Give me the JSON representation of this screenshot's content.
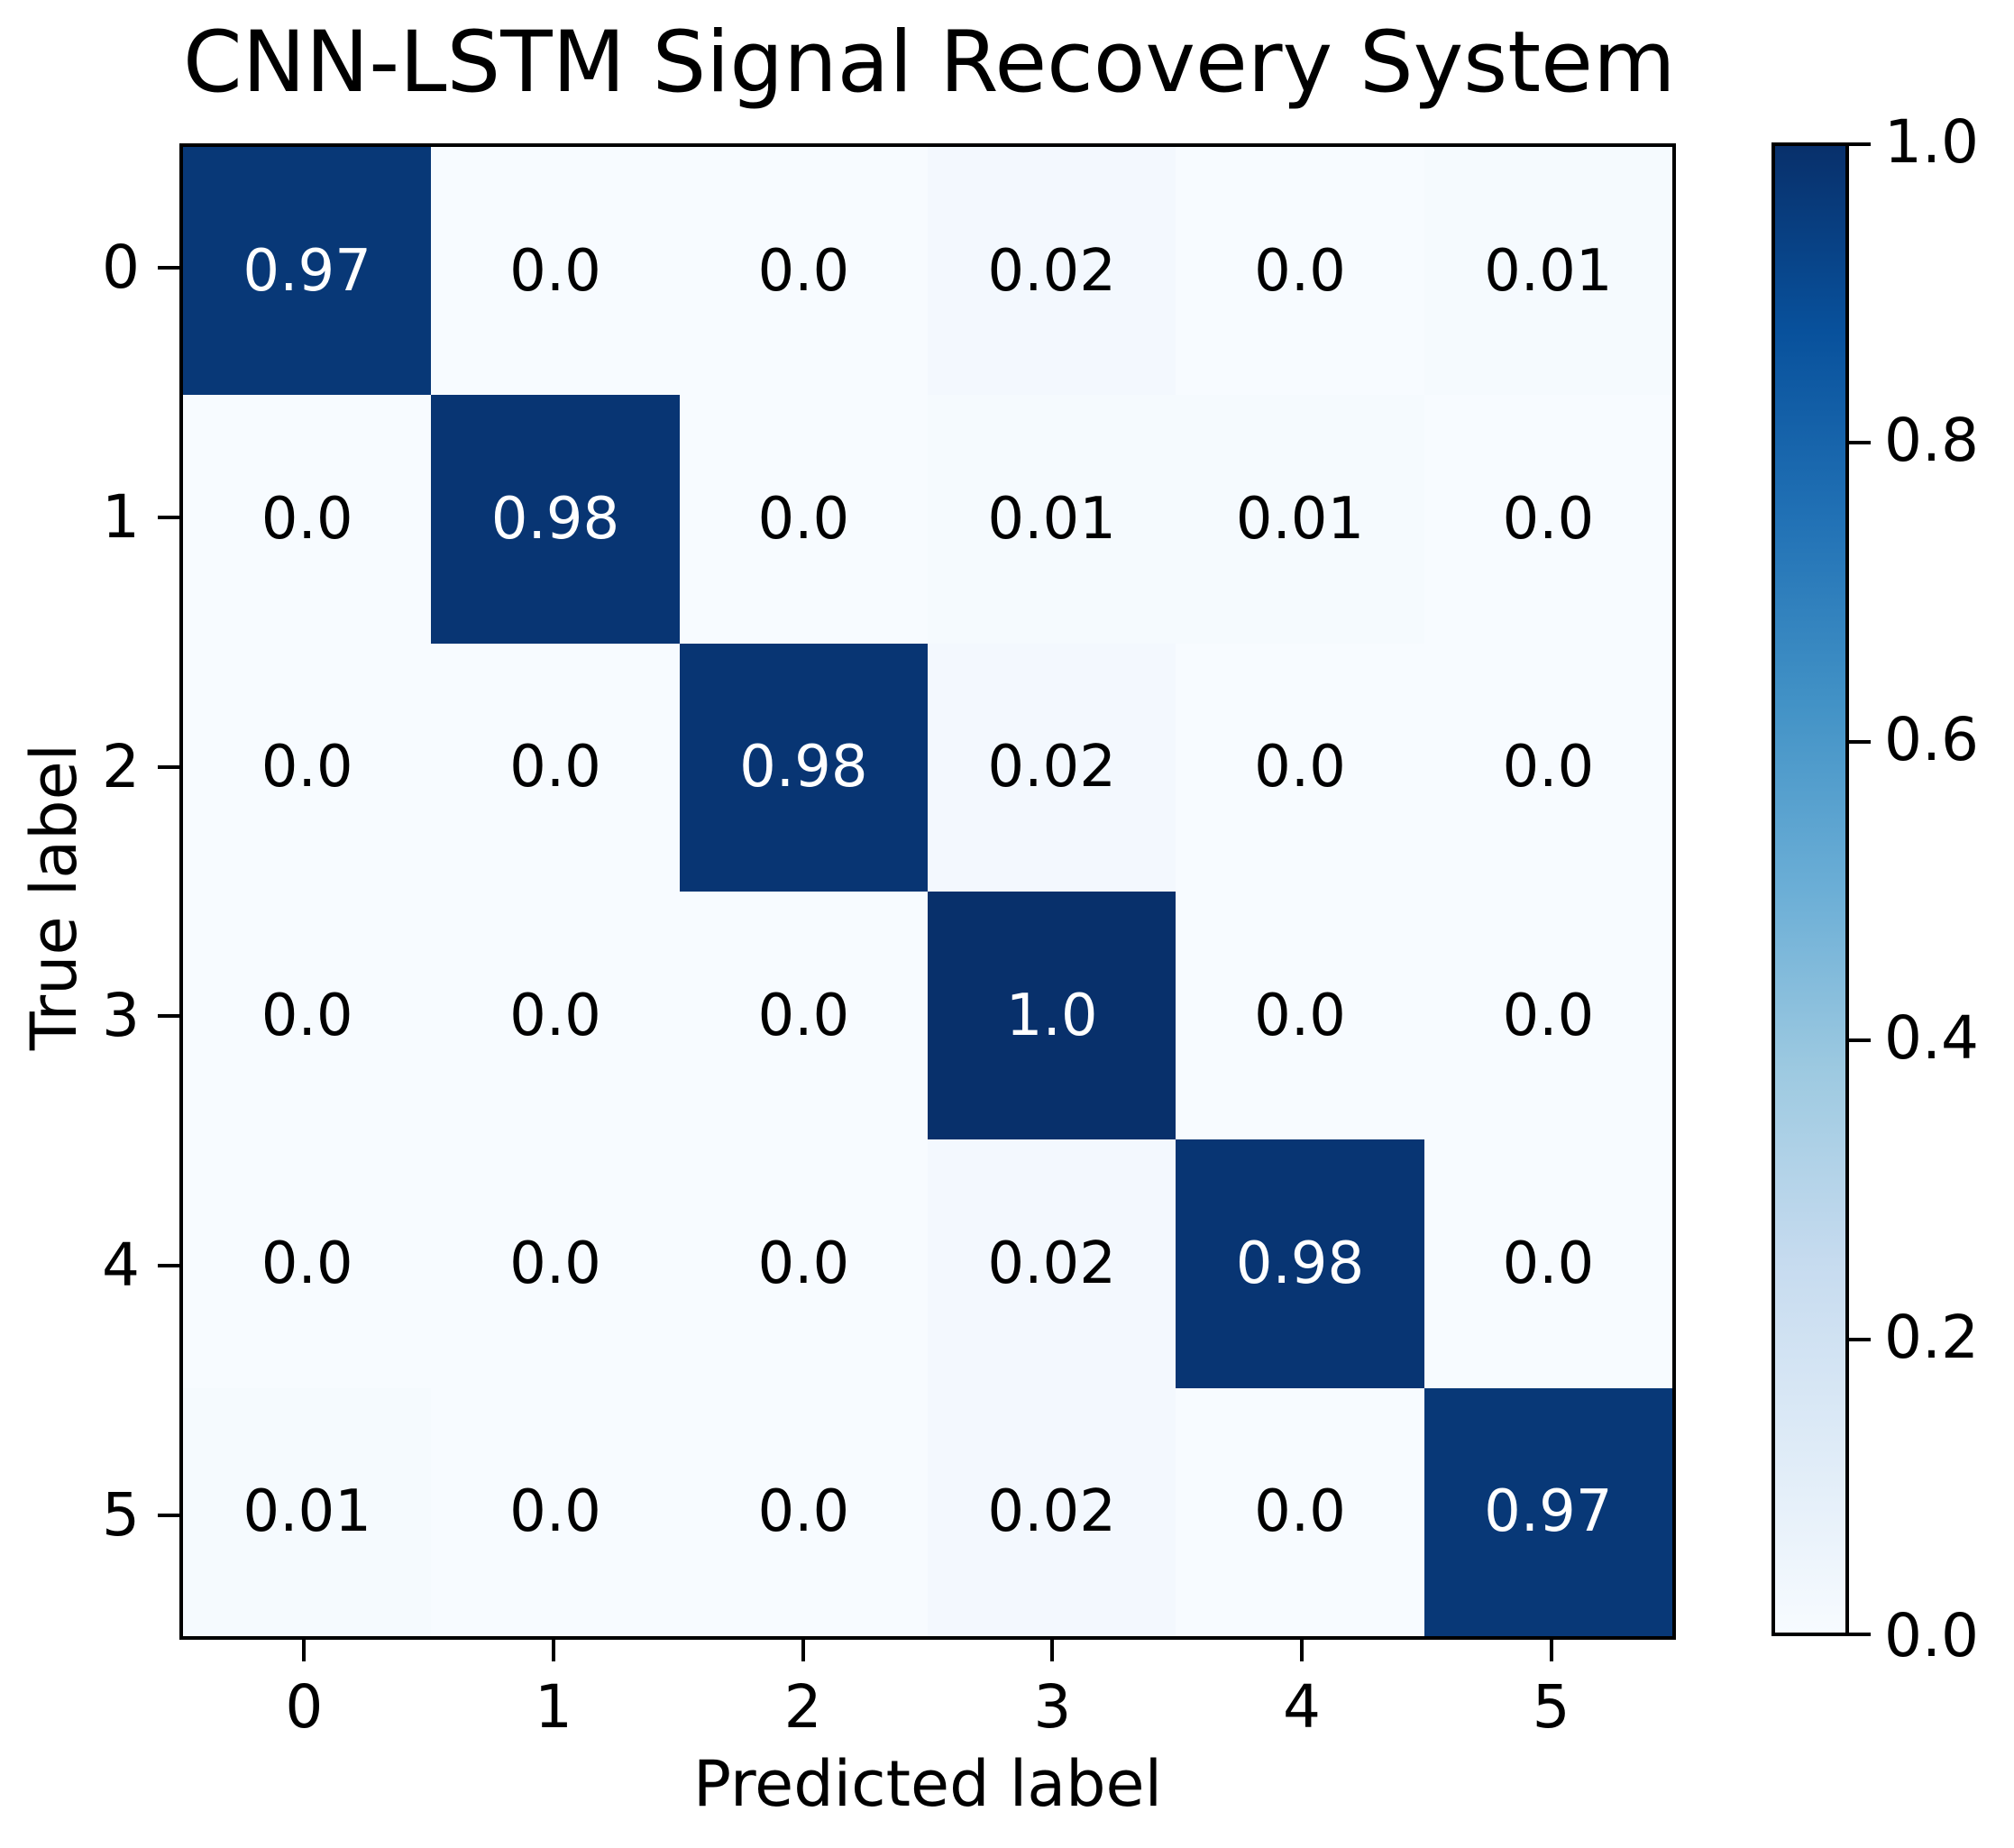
{
  "title": "CNN-LSTM Signal Recovery System",
  "chart_data": {
    "type": "heatmap",
    "title": "CNN-LSTM Signal Recovery System",
    "xlabel": "Predicted label",
    "ylabel": "True label",
    "x_tick_labels": [
      "0",
      "1",
      "2",
      "3",
      "4",
      "5"
    ],
    "y_tick_labels": [
      "0",
      "1",
      "2",
      "3",
      "4",
      "5"
    ],
    "values": [
      [
        0.97,
        0.0,
        0.0,
        0.02,
        0.0,
        0.01
      ],
      [
        0.0,
        0.98,
        0.0,
        0.01,
        0.01,
        0.0
      ],
      [
        0.0,
        0.0,
        0.98,
        0.02,
        0.0,
        0.0
      ],
      [
        0.0,
        0.0,
        0.0,
        1.0,
        0.0,
        0.0
      ],
      [
        0.0,
        0.0,
        0.0,
        0.02,
        0.98,
        0.0
      ],
      [
        0.01,
        0.0,
        0.0,
        0.02,
        0.0,
        0.97
      ]
    ],
    "cell_labels": [
      [
        "0.97",
        "0.0",
        "0.0",
        "0.02",
        "0.0",
        "0.01"
      ],
      [
        "0.0",
        "0.98",
        "0.0",
        "0.01",
        "0.01",
        "0.0"
      ],
      [
        "0.0",
        "0.0",
        "0.98",
        "0.02",
        "0.0",
        "0.0"
      ],
      [
        "0.0",
        "0.0",
        "0.0",
        "1.0",
        "0.0",
        "0.0"
      ],
      [
        "0.0",
        "0.0",
        "0.0",
        "0.02",
        "0.98",
        "0.0"
      ],
      [
        "0.01",
        "0.0",
        "0.0",
        "0.02",
        "0.0",
        "0.97"
      ]
    ],
    "vmin": 0.0,
    "vmax": 1.0,
    "colorbar_tick_labels": [
      "1.0",
      "0.8",
      "0.6",
      "0.4",
      "0.2",
      "0.0"
    ],
    "colormap": "Blues",
    "colormap_stops": [
      [
        0.0,
        "#f7fbff"
      ],
      [
        0.125,
        "#deebf7"
      ],
      [
        0.25,
        "#c6dbef"
      ],
      [
        0.375,
        "#9ecae1"
      ],
      [
        0.5,
        "#6baed6"
      ],
      [
        0.625,
        "#4292c6"
      ],
      [
        0.75,
        "#2171b5"
      ],
      [
        0.875,
        "#08519c"
      ],
      [
        1.0,
        "#08306b"
      ]
    ],
    "text_color_on_light": "#000000",
    "text_color_on_dark": "#ffffff",
    "grid": false,
    "legend_position": "colorbar-right"
  }
}
